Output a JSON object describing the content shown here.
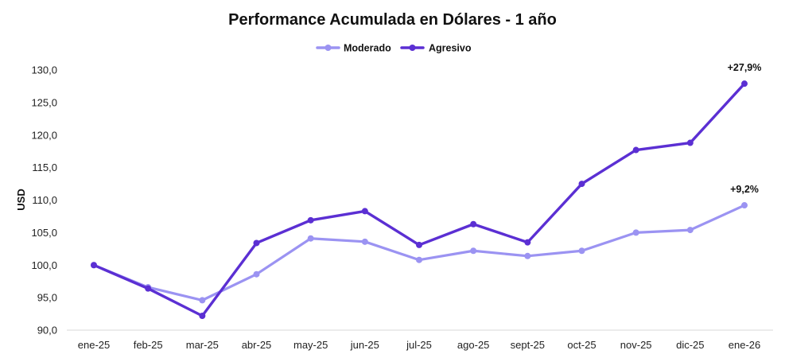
{
  "chart_data": {
    "type": "line",
    "title": "Performance Acumulada en Dólares - 1 año",
    "ylabel": "USD",
    "xlabel": "",
    "categories": [
      "ene-25",
      "feb-25",
      "mar-25",
      "abr-25",
      "may-25",
      "jun-25",
      "jul-25",
      "ago-25",
      "sept-25",
      "oct-25",
      "nov-25",
      "dic-25",
      "ene-26"
    ],
    "ylim": [
      90,
      130
    ],
    "yticks": [
      90,
      95,
      100,
      105,
      110,
      115,
      120,
      125,
      130
    ],
    "ytick_labels": [
      "90,0",
      "95,0",
      "100,0",
      "105,0",
      "110,0",
      "115,0",
      "120,0",
      "125,0",
      "130,0"
    ],
    "grid": false,
    "legend_position": "top-center",
    "series": [
      {
        "name": "Moderado",
        "color": "#9b93f2",
        "values": [
          100.0,
          96.6,
          94.6,
          98.6,
          104.1,
          103.6,
          100.8,
          102.2,
          101.4,
          102.2,
          105.0,
          105.4,
          109.2
        ],
        "end_label": "+9,2%"
      },
      {
        "name": "Agresivo",
        "color": "#5b2fd3",
        "values": [
          100.0,
          96.4,
          92.2,
          103.4,
          106.9,
          108.3,
          103.1,
          106.3,
          103.5,
          112.5,
          117.7,
          118.8,
          127.9
        ],
        "end_label": "+27,9%"
      }
    ]
  }
}
